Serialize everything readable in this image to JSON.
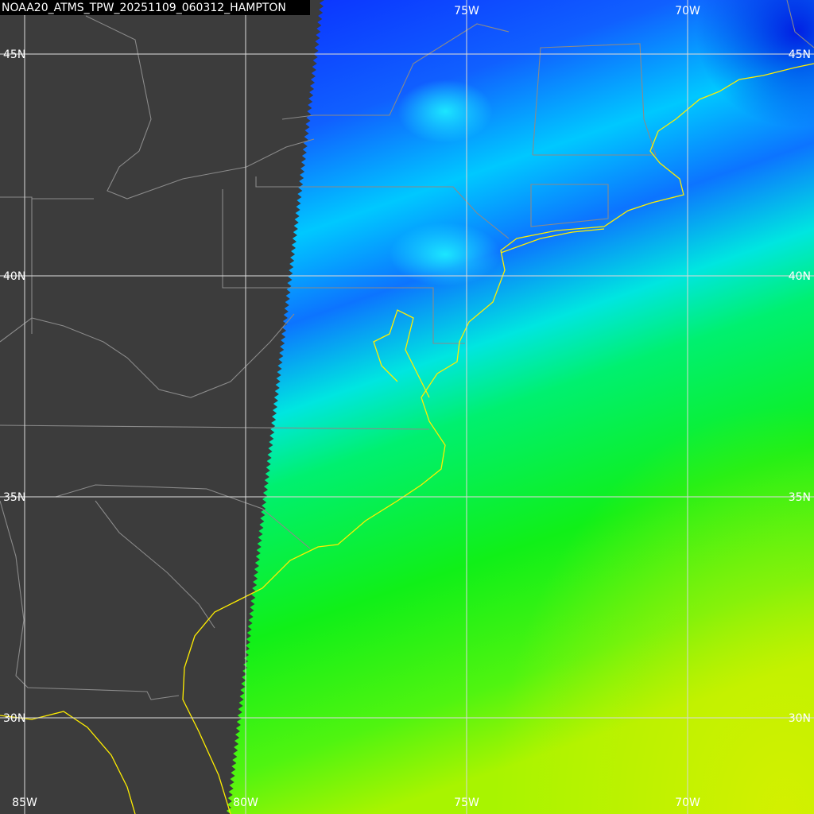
{
  "map": {
    "title": "NOAA20_ATMS_TPW_20251109_060312_HAMPTON",
    "lon_labels_top": [
      "75W",
      "70W"
    ],
    "lon_labels_bottom": [
      "85W",
      "80W",
      "75W",
      "70W"
    ],
    "lat_labels_left": [
      "45N",
      "40N",
      "35N",
      "30N"
    ],
    "lat_labels_right": [
      "45N",
      "40N",
      "35N",
      "30N"
    ]
  }
}
